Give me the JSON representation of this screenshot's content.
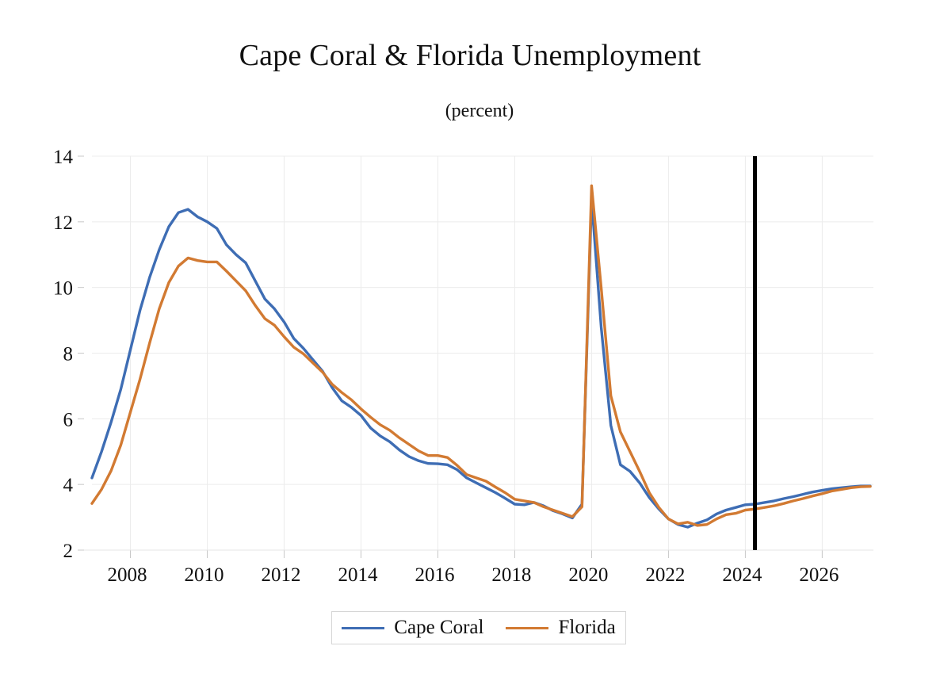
{
  "chart_data": {
    "type": "line",
    "title": "Cape Coral & Florida Unemployment",
    "subtitle": "(percent)",
    "xlabel": "",
    "ylabel": "",
    "ylim": [
      2,
      14
    ],
    "xlim": [
      2007.0,
      2027.25
    ],
    "y_ticks": [
      2,
      4,
      6,
      8,
      10,
      12,
      14
    ],
    "x_ticks": [
      2008,
      2010,
      2012,
      2014,
      2016,
      2018,
      2020,
      2022,
      2024,
      2026
    ],
    "x_tick_labels": [
      "2008",
      "2010",
      "2012",
      "2014",
      "2016",
      "2018",
      "2020",
      "2022",
      "2024",
      "2026"
    ],
    "grid": true,
    "vertical_marker": 2024.25,
    "legend_position": "bottom",
    "series": [
      {
        "name": "Cape Coral",
        "color": "#3e6db4",
        "points": [
          [
            2007.0,
            4.2
          ],
          [
            2007.25,
            5.0
          ],
          [
            2007.5,
            5.9
          ],
          [
            2007.75,
            6.9
          ],
          [
            2008.0,
            8.1
          ],
          [
            2008.25,
            9.3
          ],
          [
            2008.5,
            10.3
          ],
          [
            2008.75,
            11.15
          ],
          [
            2009.0,
            11.85
          ],
          [
            2009.25,
            12.28
          ],
          [
            2009.5,
            12.38
          ],
          [
            2009.75,
            12.15
          ],
          [
            2010.0,
            12.0
          ],
          [
            2010.25,
            11.8
          ],
          [
            2010.5,
            11.3
          ],
          [
            2010.75,
            11.0
          ],
          [
            2011.0,
            10.75
          ],
          [
            2011.25,
            10.2
          ],
          [
            2011.5,
            9.65
          ],
          [
            2011.75,
            9.35
          ],
          [
            2012.0,
            8.95
          ],
          [
            2012.25,
            8.45
          ],
          [
            2012.5,
            8.15
          ],
          [
            2012.75,
            7.8
          ],
          [
            2013.0,
            7.45
          ],
          [
            2013.25,
            6.95
          ],
          [
            2013.5,
            6.55
          ],
          [
            2013.75,
            6.35
          ],
          [
            2014.0,
            6.1
          ],
          [
            2014.25,
            5.72
          ],
          [
            2014.5,
            5.48
          ],
          [
            2014.75,
            5.3
          ],
          [
            2015.0,
            5.05
          ],
          [
            2015.25,
            4.85
          ],
          [
            2015.5,
            4.72
          ],
          [
            2015.75,
            4.64
          ],
          [
            2016.0,
            4.63
          ],
          [
            2016.25,
            4.6
          ],
          [
            2016.5,
            4.45
          ],
          [
            2016.75,
            4.2
          ],
          [
            2017.0,
            4.05
          ],
          [
            2017.25,
            3.9
          ],
          [
            2017.5,
            3.75
          ],
          [
            2017.75,
            3.58
          ],
          [
            2018.0,
            3.4
          ],
          [
            2018.25,
            3.38
          ],
          [
            2018.5,
            3.45
          ],
          [
            2018.75,
            3.35
          ],
          [
            2019.0,
            3.2
          ],
          [
            2019.25,
            3.1
          ],
          [
            2019.5,
            2.98
          ],
          [
            2019.75,
            3.4
          ],
          [
            2020.0,
            12.7
          ],
          [
            2020.25,
            8.8
          ],
          [
            2020.5,
            5.8
          ],
          [
            2020.75,
            4.6
          ],
          [
            2021.0,
            4.4
          ],
          [
            2021.25,
            4.05
          ],
          [
            2021.5,
            3.6
          ],
          [
            2021.75,
            3.25
          ],
          [
            2022.0,
            2.95
          ],
          [
            2022.25,
            2.78
          ],
          [
            2022.5,
            2.7
          ],
          [
            2022.75,
            2.82
          ],
          [
            2023.0,
            2.92
          ],
          [
            2023.25,
            3.1
          ],
          [
            2023.5,
            3.22
          ],
          [
            2023.75,
            3.3
          ],
          [
            2024.0,
            3.38
          ],
          [
            2024.25,
            3.4
          ],
          [
            2024.5,
            3.45
          ],
          [
            2024.75,
            3.5
          ],
          [
            2025.0,
            3.57
          ],
          [
            2025.25,
            3.63
          ],
          [
            2025.5,
            3.7
          ],
          [
            2025.75,
            3.77
          ],
          [
            2026.0,
            3.82
          ],
          [
            2026.25,
            3.87
          ],
          [
            2026.5,
            3.9
          ],
          [
            2026.75,
            3.93
          ],
          [
            2027.0,
            3.95
          ],
          [
            2027.25,
            3.95
          ]
        ]
      },
      {
        "name": "Florida",
        "color": "#d27a32",
        "points": [
          [
            2007.0,
            3.42
          ],
          [
            2007.25,
            3.85
          ],
          [
            2007.5,
            4.42
          ],
          [
            2007.75,
            5.2
          ],
          [
            2008.0,
            6.2
          ],
          [
            2008.25,
            7.2
          ],
          [
            2008.5,
            8.3
          ],
          [
            2008.75,
            9.35
          ],
          [
            2009.0,
            10.15
          ],
          [
            2009.25,
            10.65
          ],
          [
            2009.5,
            10.9
          ],
          [
            2009.75,
            10.82
          ],
          [
            2010.0,
            10.78
          ],
          [
            2010.25,
            10.78
          ],
          [
            2010.5,
            10.5
          ],
          [
            2010.75,
            10.2
          ],
          [
            2011.0,
            9.9
          ],
          [
            2011.25,
            9.45
          ],
          [
            2011.5,
            9.05
          ],
          [
            2011.75,
            8.85
          ],
          [
            2012.0,
            8.5
          ],
          [
            2012.25,
            8.18
          ],
          [
            2012.5,
            7.98
          ],
          [
            2012.75,
            7.7
          ],
          [
            2013.0,
            7.42
          ],
          [
            2013.25,
            7.05
          ],
          [
            2013.5,
            6.8
          ],
          [
            2013.75,
            6.58
          ],
          [
            2014.0,
            6.3
          ],
          [
            2014.25,
            6.05
          ],
          [
            2014.5,
            5.82
          ],
          [
            2014.75,
            5.65
          ],
          [
            2015.0,
            5.42
          ],
          [
            2015.25,
            5.22
          ],
          [
            2015.5,
            5.02
          ],
          [
            2015.75,
            4.88
          ],
          [
            2016.0,
            4.88
          ],
          [
            2016.25,
            4.82
          ],
          [
            2016.5,
            4.58
          ],
          [
            2016.75,
            4.3
          ],
          [
            2017.0,
            4.2
          ],
          [
            2017.25,
            4.1
          ],
          [
            2017.5,
            3.92
          ],
          [
            2017.75,
            3.75
          ],
          [
            2018.0,
            3.55
          ],
          [
            2018.25,
            3.5
          ],
          [
            2018.5,
            3.45
          ],
          [
            2018.75,
            3.32
          ],
          [
            2019.0,
            3.22
          ],
          [
            2019.25,
            3.12
          ],
          [
            2019.5,
            3.02
          ],
          [
            2019.75,
            3.32
          ],
          [
            2020.0,
            13.1
          ],
          [
            2020.25,
            10.0
          ],
          [
            2020.5,
            6.7
          ],
          [
            2020.75,
            5.6
          ],
          [
            2021.0,
            5.0
          ],
          [
            2021.25,
            4.4
          ],
          [
            2021.5,
            3.75
          ],
          [
            2021.75,
            3.3
          ],
          [
            2022.0,
            2.95
          ],
          [
            2022.25,
            2.8
          ],
          [
            2022.5,
            2.85
          ],
          [
            2022.75,
            2.75
          ],
          [
            2023.0,
            2.78
          ],
          [
            2023.25,
            2.95
          ],
          [
            2023.5,
            3.08
          ],
          [
            2023.75,
            3.12
          ],
          [
            2024.0,
            3.22
          ],
          [
            2024.25,
            3.25
          ],
          [
            2024.5,
            3.3
          ],
          [
            2024.75,
            3.35
          ],
          [
            2025.0,
            3.42
          ],
          [
            2025.25,
            3.5
          ],
          [
            2025.5,
            3.57
          ],
          [
            2025.75,
            3.65
          ],
          [
            2026.0,
            3.72
          ],
          [
            2026.25,
            3.8
          ],
          [
            2026.5,
            3.85
          ],
          [
            2026.75,
            3.9
          ],
          [
            2027.0,
            3.93
          ],
          [
            2027.25,
            3.94
          ]
        ]
      }
    ]
  }
}
